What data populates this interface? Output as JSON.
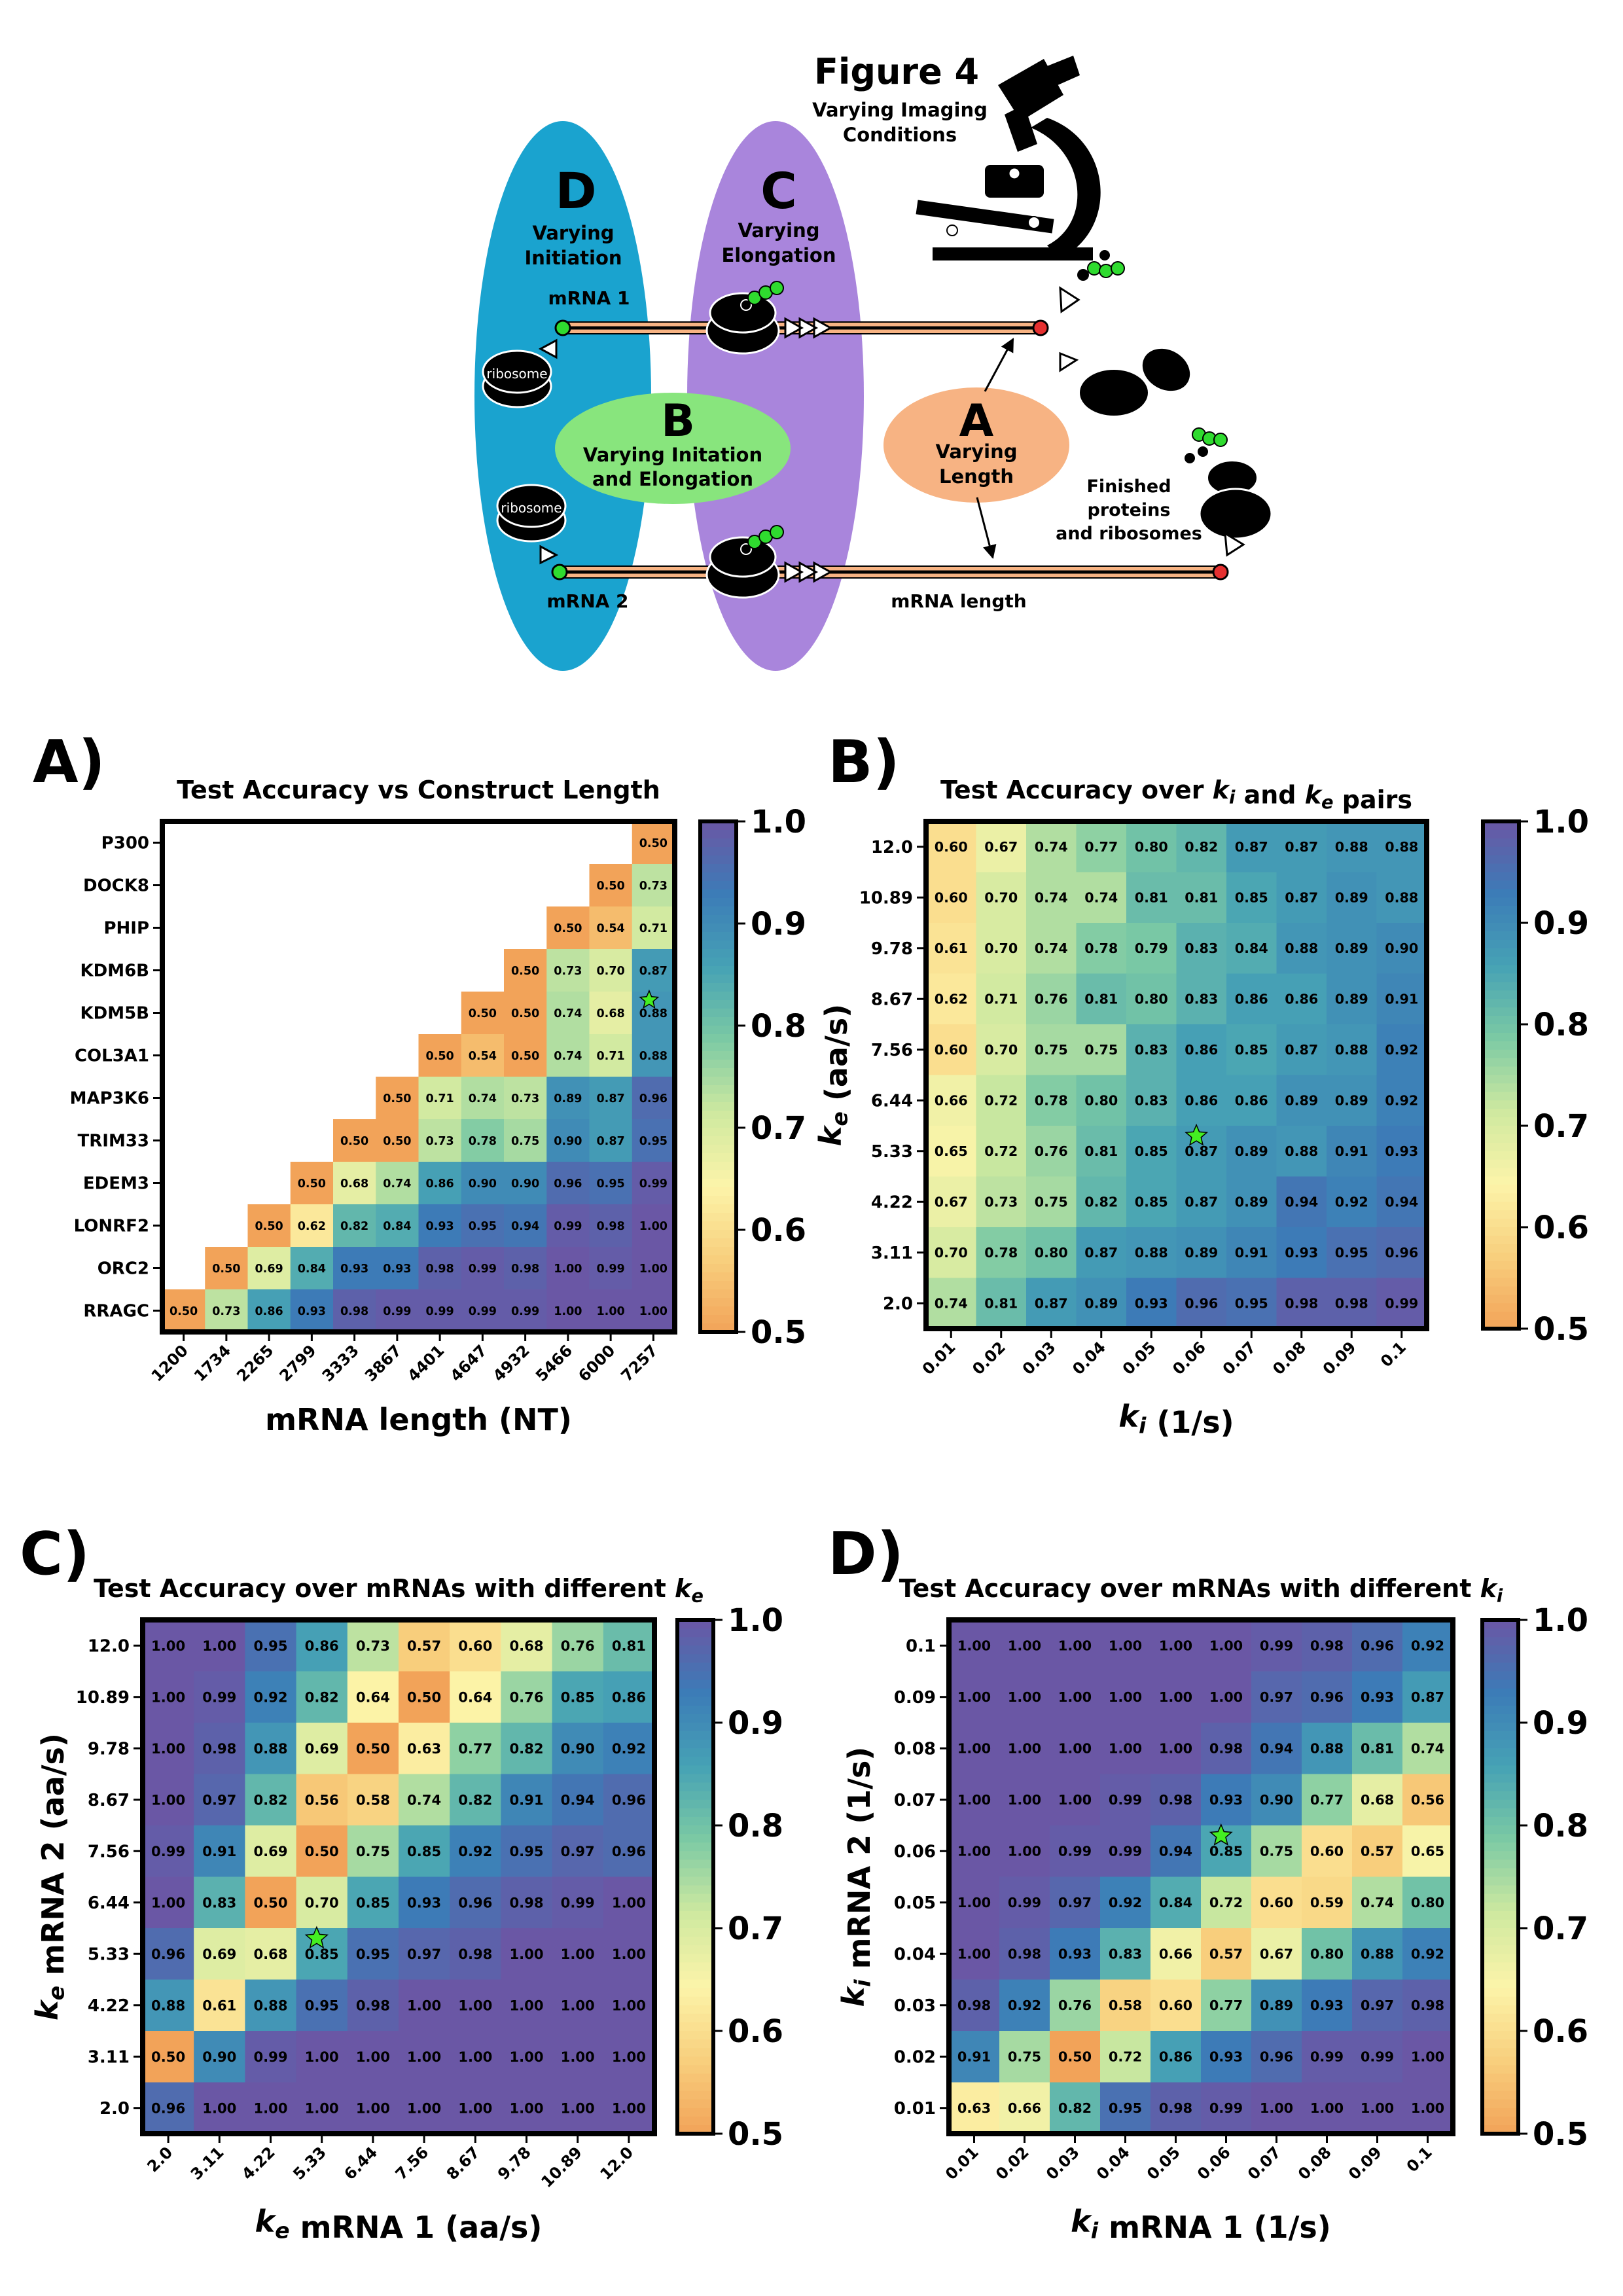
{
  "figure": {
    "title": "Figure 4",
    "imaging_label": [
      "Varying Imaging",
      "Conditions"
    ],
    "d_letter": "D",
    "d_label": [
      "Varying",
      "Initiation"
    ],
    "c_letter": "C",
    "c_label": [
      "Varying",
      "Elongation"
    ],
    "b_letter": "B",
    "b_label": [
      "Varying Initation",
      "and Elongation"
    ],
    "a_letter": "A",
    "a_label": [
      "Varying",
      "Length"
    ],
    "mrna1": "mRNA 1",
    "mrna2": "mRNA 2",
    "ribosome": "ribosome",
    "finished": [
      "Finished",
      "proteins",
      "and ribosomes"
    ],
    "mrna_length": "mRNA length",
    "colors": {
      "blue_ellipse": "#1aa3cf",
      "purple_ellipse": "#a985dc",
      "green_ellipse": "#88e57d",
      "orange_ellipse": "#f7b383",
      "probe_green": "#2fdb2f",
      "end_red": "#e53030",
      "mrna_fill": "#f7b383"
    }
  },
  "colorbar_ticks": [
    "1.0",
    "0.9",
    "0.8",
    "0.7",
    "0.6",
    "0.5"
  ],
  "colormap": [
    "#f2a359",
    "#f8cf7d",
    "#fcf4a9",
    "#cfe9a0",
    "#7ccaa4",
    "#46a2b5",
    "#3c7cb7",
    "#6a57a5"
  ],
  "chart_data": [
    {
      "panel": "A)",
      "type": "heatmap",
      "title": "Test Accuracy vs Construct Length",
      "xlabel": "mRNA length (NT)",
      "ylabel": "",
      "x": [
        "1200",
        "1734",
        "2265",
        "2799",
        "3333",
        "3867",
        "4401",
        "4647",
        "4932",
        "5466",
        "6000",
        "7257"
      ],
      "y": [
        "P300",
        "DOCK8",
        "PHIP",
        "KDM6B",
        "KDM5B",
        "COL3A1",
        "MAP3K6",
        "TRIM33",
        "EDEM3",
        "LONRF2",
        "ORC2",
        "RRAGC"
      ],
      "values": [
        [
          null,
          null,
          null,
          null,
          null,
          null,
          null,
          null,
          null,
          null,
          null,
          0.5
        ],
        [
          null,
          null,
          null,
          null,
          null,
          null,
          null,
          null,
          null,
          null,
          0.5,
          0.73
        ],
        [
          null,
          null,
          null,
          null,
          null,
          null,
          null,
          null,
          null,
          0.5,
          0.54,
          0.71
        ],
        [
          null,
          null,
          null,
          null,
          null,
          null,
          null,
          null,
          0.5,
          0.73,
          0.7,
          0.87
        ],
        [
          null,
          null,
          null,
          null,
          null,
          null,
          null,
          0.5,
          0.5,
          0.74,
          0.68,
          0.88
        ],
        [
          null,
          null,
          null,
          null,
          null,
          null,
          0.5,
          0.54,
          0.5,
          0.74,
          0.71,
          0.88
        ],
        [
          null,
          null,
          null,
          null,
          null,
          0.5,
          0.71,
          0.74,
          0.73,
          0.89,
          0.87,
          0.96
        ],
        [
          null,
          null,
          null,
          null,
          0.5,
          0.5,
          0.73,
          0.78,
          0.75,
          0.9,
          0.87,
          0.95
        ],
        [
          null,
          null,
          null,
          0.5,
          0.68,
          0.74,
          0.86,
          0.9,
          0.9,
          0.96,
          0.95,
          0.99
        ],
        [
          null,
          null,
          0.5,
          0.62,
          0.82,
          0.84,
          0.93,
          0.95,
          0.94,
          0.99,
          0.98,
          1.0
        ],
        [
          null,
          0.5,
          0.69,
          0.84,
          0.93,
          0.93,
          0.98,
          0.99,
          0.98,
          1.0,
          0.99,
          1.0
        ],
        [
          0.5,
          0.73,
          0.86,
          0.93,
          0.98,
          0.99,
          0.99,
          0.99,
          0.99,
          1.0,
          1.0,
          1.0
        ]
      ],
      "star": [
        4,
        11
      ],
      "zlim": [
        0.5,
        1.0
      ]
    },
    {
      "panel": "B)",
      "type": "heatmap",
      "title": "Test Accuracy over k_i and k_e pairs",
      "xlabel": "k_i (1/s)",
      "ylabel": "k_e (aa/s)",
      "x": [
        "0.01",
        "0.02",
        "0.03",
        "0.04",
        "0.05",
        "0.06",
        "0.07",
        "0.08",
        "0.09",
        "0.1"
      ],
      "y": [
        "12.0",
        "10.89",
        "9.78",
        "8.67",
        "7.56",
        "6.44",
        "5.33",
        "4.22",
        "3.11",
        "2.0"
      ],
      "values": [
        [
          0.6,
          0.67,
          0.74,
          0.77,
          0.8,
          0.82,
          0.87,
          0.87,
          0.88,
          0.88
        ],
        [
          0.6,
          0.7,
          0.74,
          0.74,
          0.81,
          0.81,
          0.85,
          0.87,
          0.89,
          0.88
        ],
        [
          0.61,
          0.7,
          0.74,
          0.78,
          0.79,
          0.83,
          0.84,
          0.88,
          0.89,
          0.9
        ],
        [
          0.62,
          0.71,
          0.76,
          0.81,
          0.8,
          0.83,
          0.86,
          0.86,
          0.89,
          0.91
        ],
        [
          0.6,
          0.7,
          0.75,
          0.75,
          0.83,
          0.86,
          0.85,
          0.87,
          0.88,
          0.92
        ],
        [
          0.66,
          0.72,
          0.78,
          0.8,
          0.83,
          0.86,
          0.86,
          0.89,
          0.89,
          0.92
        ],
        [
          0.65,
          0.72,
          0.76,
          0.81,
          0.85,
          0.87,
          0.89,
          0.88,
          0.91,
          0.93
        ],
        [
          0.67,
          0.73,
          0.75,
          0.82,
          0.85,
          0.87,
          0.89,
          0.94,
          0.92,
          0.94
        ],
        [
          0.7,
          0.78,
          0.8,
          0.87,
          0.88,
          0.89,
          0.91,
          0.93,
          0.95,
          0.96
        ],
        [
          0.74,
          0.81,
          0.87,
          0.89,
          0.93,
          0.96,
          0.95,
          0.98,
          0.98,
          0.99
        ]
      ],
      "star": [
        6,
        5
      ],
      "zlim": [
        0.5,
        1.0
      ]
    },
    {
      "panel": "C)",
      "type": "heatmap",
      "title": "Test Accuracy over mRNAs with different k_e",
      "xlabel": "k_e mRNA 1 (aa/s)",
      "ylabel": "k_e mRNA 2 (aa/s)",
      "x": [
        "2.0",
        "3.11",
        "4.22",
        "5.33",
        "6.44",
        "7.56",
        "8.67",
        "9.78",
        "10.89",
        "12.0"
      ],
      "y": [
        "12.0",
        "10.89",
        "9.78",
        "8.67",
        "7.56",
        "6.44",
        "5.33",
        "4.22",
        "3.11",
        "2.0"
      ],
      "values": [
        [
          1.0,
          1.0,
          0.95,
          0.86,
          0.73,
          0.57,
          0.6,
          0.68,
          0.76,
          0.81
        ],
        [
          1.0,
          0.99,
          0.92,
          0.82,
          0.64,
          0.5,
          0.64,
          0.76,
          0.85,
          0.86
        ],
        [
          1.0,
          0.98,
          0.88,
          0.69,
          0.5,
          0.63,
          0.77,
          0.82,
          0.9,
          0.92
        ],
        [
          1.0,
          0.97,
          0.82,
          0.56,
          0.58,
          0.74,
          0.82,
          0.91,
          0.94,
          0.96
        ],
        [
          0.99,
          0.91,
          0.69,
          0.5,
          0.75,
          0.85,
          0.92,
          0.95,
          0.97,
          0.96
        ],
        [
          1.0,
          0.83,
          0.5,
          0.7,
          0.85,
          0.93,
          0.96,
          0.98,
          0.99,
          1.0
        ],
        [
          0.96,
          0.69,
          0.68,
          0.85,
          0.95,
          0.97,
          0.98,
          1.0,
          1.0,
          1.0
        ],
        [
          0.88,
          0.61,
          0.88,
          0.95,
          0.98,
          1.0,
          1.0,
          1.0,
          1.0,
          1.0
        ],
        [
          0.5,
          0.9,
          0.99,
          1.0,
          1.0,
          1.0,
          1.0,
          1.0,
          1.0,
          1.0
        ],
        [
          0.96,
          1.0,
          1.0,
          1.0,
          1.0,
          1.0,
          1.0,
          1.0,
          1.0,
          1.0
        ]
      ],
      "star": [
        6,
        3
      ],
      "zlim": [
        0.5,
        1.0
      ]
    },
    {
      "panel": "D)",
      "type": "heatmap",
      "title": "Test Accuracy over mRNAs with different k_i",
      "xlabel": "k_i mRNA 1 (1/s)",
      "ylabel": "k_i mRNA 2 (1/s)",
      "x": [
        "0.01",
        "0.02",
        "0.03",
        "0.04",
        "0.05",
        "0.06",
        "0.07",
        "0.08",
        "0.09",
        "0.1"
      ],
      "y": [
        "0.1",
        "0.09",
        "0.08",
        "0.07",
        "0.06",
        "0.05",
        "0.04",
        "0.03",
        "0.02",
        "0.01"
      ],
      "values": [
        [
          1.0,
          1.0,
          1.0,
          1.0,
          1.0,
          1.0,
          0.99,
          0.98,
          0.96,
          0.92
        ],
        [
          1.0,
          1.0,
          1.0,
          1.0,
          1.0,
          1.0,
          0.97,
          0.96,
          0.93,
          0.87
        ],
        [
          1.0,
          1.0,
          1.0,
          1.0,
          1.0,
          0.98,
          0.94,
          0.88,
          0.81,
          0.74
        ],
        [
          1.0,
          1.0,
          1.0,
          0.99,
          0.98,
          0.93,
          0.9,
          0.77,
          0.68,
          0.56
        ],
        [
          1.0,
          1.0,
          0.99,
          0.99,
          0.94,
          0.85,
          0.75,
          0.6,
          0.57,
          0.65
        ],
        [
          1.0,
          0.99,
          0.97,
          0.92,
          0.84,
          0.72,
          0.6,
          0.59,
          0.74,
          0.8
        ],
        [
          1.0,
          0.98,
          0.93,
          0.83,
          0.66,
          0.57,
          0.67,
          0.8,
          0.88,
          0.92
        ],
        [
          0.98,
          0.92,
          0.76,
          0.58,
          0.6,
          0.77,
          0.89,
          0.93,
          0.97,
          0.98
        ],
        [
          0.91,
          0.75,
          0.5,
          0.72,
          0.86,
          0.93,
          0.96,
          0.99,
          0.99,
          1.0
        ],
        [
          0.63,
          0.66,
          0.82,
          0.95,
          0.98,
          0.99,
          1.0,
          1.0,
          1.0,
          1.0
        ]
      ],
      "star": [
        4,
        5
      ],
      "zlim": [
        0.5,
        1.0
      ]
    }
  ]
}
